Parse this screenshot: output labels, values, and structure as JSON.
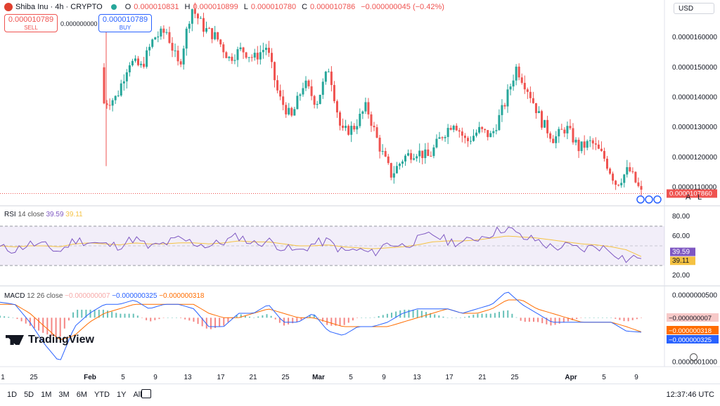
{
  "header": {
    "symbol": "Shiba Inu · 4h · CRYPTO",
    "o_label": "O",
    "o": "0.000010831",
    "h_label": "H",
    "h": "0.000010899",
    "l_label": "L",
    "l": "0.000010780",
    "c_label": "C",
    "c": "0.000010786",
    "change": "−0.000000045 (−0.42%)"
  },
  "trade": {
    "sell_price": "0.000010789",
    "sell_label": "SELL",
    "spread": "0.000000000",
    "buy_price": "0.000010789",
    "buy_label": "BUY"
  },
  "currency": "USD",
  "chart_labels": {
    "a": "A",
    "l": "L"
  },
  "logo_text": "TradingView",
  "range_buttons": [
    "1D",
    "5D",
    "1M",
    "3M",
    "6M",
    "YTD",
    "1Y",
    "All"
  ],
  "clock": "12:37:46 UTC",
  "colors": {
    "up": "#26a69a",
    "down": "#ef5350",
    "rsi": "#7e57c2",
    "rsi_ma": "#f5c242",
    "macd": "#2962ff",
    "signal": "#ff6d00"
  },
  "chart_data": [
    {
      "type": "candlestick",
      "x_tick_labels": [
        "1",
        "25",
        "Feb",
        "5",
        "9",
        "13",
        "17",
        "21",
        "25",
        "Mar",
        "5",
        "9",
        "13",
        "17",
        "21",
        "25",
        "Apr",
        "5",
        "9"
      ],
      "y_tick_labels": [
        "0.0000160000",
        "0.0000150000",
        "0.0000140000",
        "0.0000130000",
        "0.0000120000",
        "0.0000110000"
      ],
      "ylim": [
        1.04e-05,
        1.72e-05
      ],
      "last_price": "0.0000107860",
      "close_path": [
        [
          0,
          1.38e-05
        ],
        [
          1,
          1.4e-05
        ],
        [
          2,
          1.52e-05
        ],
        [
          3,
          1.5e-05
        ],
        [
          4,
          1.6e-05
        ],
        [
          5,
          1.62e-05
        ],
        [
          6,
          1.5e-05
        ],
        [
          7,
          1.7e-05
        ],
        [
          8,
          1.63e-05
        ],
        [
          9,
          1.6e-05
        ],
        [
          10,
          1.53e-05
        ],
        [
          11,
          1.56e-05
        ],
        [
          12,
          1.53e-05
        ],
        [
          13,
          1.57e-05
        ],
        [
          14,
          1.4e-05
        ],
        [
          15,
          1.33e-05
        ],
        [
          16,
          1.45e-05
        ],
        [
          17,
          1.38e-05
        ],
        [
          18,
          1.5e-05
        ],
        [
          19,
          1.28e-05
        ],
        [
          20,
          1.3e-05
        ],
        [
          21,
          1.37e-05
        ],
        [
          22,
          1.24e-05
        ],
        [
          23,
          1.14e-05
        ],
        [
          24,
          1.2e-05
        ],
        [
          25,
          1.22e-05
        ],
        [
          26,
          1.2e-05
        ],
        [
          27,
          1.27e-05
        ],
        [
          28,
          1.32e-05
        ],
        [
          29,
          1.25e-05
        ],
        [
          30,
          1.29e-05
        ],
        [
          31,
          1.27e-05
        ],
        [
          32,
          1.37e-05
        ],
        [
          33,
          1.5e-05
        ],
        [
          34,
          1.42e-05
        ],
        [
          35,
          1.32e-05
        ],
        [
          36,
          1.26e-05
        ],
        [
          37,
          1.3e-05
        ],
        [
          38,
          1.23e-05
        ],
        [
          39,
          1.25e-05
        ],
        [
          40,
          1.2e-05
        ],
        [
          41,
          1.11e-05
        ],
        [
          42,
          1.16e-05
        ],
        [
          43,
          1.08e-05
        ]
      ]
    },
    {
      "type": "line",
      "title": "RSI",
      "params": "14 close",
      "legend": [
        "39.59",
        "39.11"
      ],
      "y_tick_labels": [
        "80.00",
        "60.00",
        "20.00"
      ],
      "ylim": [
        10,
        90
      ],
      "band": [
        30,
        70
      ],
      "series": [
        {
          "values": [
            48,
            46,
            52,
            50,
            44,
            56,
            54,
            51,
            50,
            58,
            48,
            52,
            57,
            53,
            50,
            54,
            60,
            52,
            55,
            48,
            44,
            52,
            55,
            44,
            46,
            42,
            53,
            50,
            56,
            62,
            55,
            53,
            58,
            63,
            69,
            58,
            56,
            48,
            50,
            46,
            50,
            45,
            36,
            39.59
          ]
        },
        {
          "values": [
            50,
            49,
            50,
            50,
            49,
            52,
            53,
            52,
            51,
            53,
            52,
            52,
            53,
            53,
            52,
            53,
            55,
            54,
            54,
            52,
            50,
            50,
            51,
            49,
            48,
            47,
            48,
            49,
            51,
            54,
            55,
            55,
            56,
            58,
            60,
            59,
            58,
            56,
            54,
            52,
            51,
            49,
            46,
            39.11
          ]
        }
      ]
    },
    {
      "type": "line",
      "title": "MACD",
      "params": "12 26 close",
      "legend": [
        "−0.000000007",
        "−0.000000325",
        "−0.000000318"
      ],
      "y_tick_labels": [
        "0.0000000500",
        "0.0000001000"
      ],
      "value_labels": [
        "−0.000000007",
        "−0.000000318",
        "−0.000000325"
      ],
      "ylim": [
        -1.1e-06,
        7e-07
      ],
      "series": [
        {
          "values": [
            3.5e-07,
            3e-07,
            -1e-07,
            -6e-07,
            -1e-06,
            -2e-07,
            1e-07,
            3e-07,
            3e-07,
            4e-07,
            2e-07,
            3e-07,
            3e-07,
            2e-07,
            -2e-07,
            -2e-07,
            1e-07,
            1e-07,
            3e-07,
            -1e-07,
            -1e-07,
            1e-07,
            -3e-07,
            -4e-07,
            -2e-07,
            -2e-07,
            -1e-07,
            1e-07,
            2e-07,
            2e-07,
            2e-07,
            1e-07,
            2e-07,
            3e-07,
            6e-07,
            3e-07,
            1e-07,
            -1e-07,
            -1e-07,
            -1e-07,
            -1e-07,
            -1e-07,
            -3e-07,
            -3.25e-07
          ]
        },
        {
          "values": [
            3e-07,
            3e-07,
            1e-07,
            -2e-07,
            -5e-07,
            -4e-07,
            -1e-07,
            1e-07,
            2e-07,
            3e-07,
            3e-07,
            3e-07,
            3e-07,
            3e-07,
            1e-07,
            0.0,
            0.0,
            1e-07,
            2e-07,
            1e-07,
            0.0,
            0.0,
            -1e-07,
            -2e-07,
            -2e-07,
            -2e-07,
            -2e-07,
            -1e-07,
            0.0,
            1e-07,
            2e-07,
            1e-07,
            1e-07,
            2e-07,
            4e-07,
            4e-07,
            2e-07,
            1e-07,
            0.0,
            -1e-07,
            -1e-07,
            -1e-07,
            -2e-07,
            -3.18e-07
          ]
        }
      ]
    }
  ]
}
